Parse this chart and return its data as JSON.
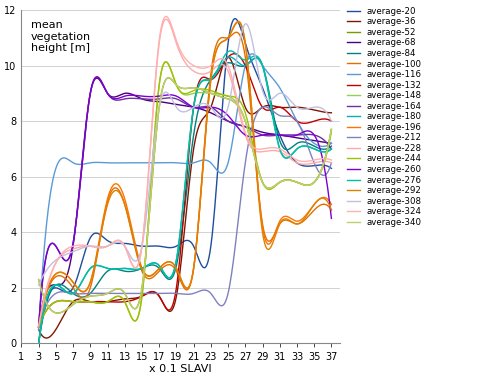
{
  "title_lines": [
    "mean",
    "vegetation",
    "height [m]"
  ],
  "xlabel": "x 0.1 SLAVI",
  "xlim": [
    1,
    38
  ],
  "ylim": [
    0,
    12
  ],
  "xticks": [
    1,
    3,
    5,
    7,
    9,
    11,
    13,
    15,
    17,
    19,
    21,
    23,
    25,
    27,
    29,
    31,
    33,
    35,
    37
  ],
  "yticks": [
    0,
    2,
    4,
    6,
    8,
    10,
    12
  ],
  "series": [
    {
      "label": "average-20",
      "color": "#1f4e9c",
      "x": [
        3,
        5,
        7,
        9,
        11,
        13,
        15,
        17,
        19,
        21,
        23,
        25,
        27,
        29,
        31,
        33,
        35,
        37
      ],
      "y": [
        0.0,
        2.0,
        2.0,
        3.8,
        3.7,
        3.6,
        3.5,
        3.5,
        3.5,
        3.5,
        3.5,
        10.8,
        10.8,
        9.2,
        7.5,
        6.5,
        6.4,
        6.3
      ]
    },
    {
      "label": "average-36",
      "color": "#7f1700",
      "x": [
        3,
        5,
        7,
        9,
        11,
        13,
        15,
        17,
        19,
        21,
        23,
        25,
        27,
        29,
        31,
        33,
        35,
        37
      ],
      "y": [
        0.5,
        0.5,
        1.5,
        1.5,
        1.5,
        1.6,
        1.7,
        1.7,
        1.7,
        7.0,
        8.5,
        10.3,
        8.5,
        8.5,
        8.5,
        8.5,
        8.4,
        8.3
      ]
    },
    {
      "label": "average-52",
      "color": "#7a9a00",
      "x": [
        3,
        5,
        7,
        9,
        11,
        13,
        15,
        17,
        19,
        21,
        23,
        25,
        27,
        29,
        31,
        33,
        35,
        37
      ],
      "y": [
        2.3,
        1.1,
        1.4,
        1.7,
        1.8,
        1.8,
        2.0,
        8.5,
        9.3,
        9.2,
        9.0,
        8.8,
        8.0,
        5.8,
        5.8,
        5.8,
        5.8,
        7.7
      ]
    },
    {
      "label": "average-68",
      "color": "#4b0082",
      "x": [
        3,
        5,
        7,
        9,
        11,
        13,
        15,
        17,
        19,
        21,
        23,
        25,
        27,
        29,
        31,
        33,
        35,
        37
      ],
      "y": [
        0.6,
        2.1,
        3.5,
        9.0,
        9.0,
        9.0,
        8.8,
        8.7,
        8.6,
        8.5,
        8.3,
        8.0,
        7.8,
        7.6,
        7.5,
        7.4,
        7.3,
        7.2
      ]
    },
    {
      "label": "average-84",
      "color": "#008080",
      "x": [
        3,
        5,
        7,
        9,
        11,
        13,
        15,
        17,
        19,
        21,
        23,
        25,
        27,
        29,
        31,
        33,
        35,
        37
      ],
      "y": [
        0.0,
        2.1,
        1.8,
        1.8,
        2.6,
        2.6,
        2.7,
        2.7,
        2.8,
        7.5,
        9.5,
        10.1,
        10.0,
        10.0,
        7.3,
        7.2,
        7.1,
        7.1
      ]
    },
    {
      "label": "average-100",
      "color": "#e07000",
      "x": [
        3,
        5,
        7,
        9,
        11,
        13,
        15,
        17,
        19,
        21,
        23,
        25,
        27,
        29,
        31,
        33,
        35,
        37
      ],
      "y": [
        0.6,
        2.4,
        2.0,
        2.0,
        5.1,
        5.0,
        2.6,
        2.6,
        2.6,
        2.7,
        9.7,
        11.0,
        10.3,
        4.3,
        4.3,
        4.3,
        4.8,
        4.8
      ]
    },
    {
      "label": "average-116",
      "color": "#5b9bd5",
      "x": [
        3,
        5,
        7,
        9,
        11,
        13,
        15,
        17,
        19,
        21,
        23,
        25,
        27,
        29,
        31,
        33,
        35,
        37
      ],
      "y": [
        0.5,
        6.3,
        6.5,
        6.5,
        6.5,
        6.5,
        6.5,
        6.5,
        6.5,
        6.5,
        6.5,
        6.5,
        10.0,
        10.0,
        9.2,
        8.0,
        7.2,
        7.2
      ]
    },
    {
      "label": "average-132",
      "color": "#c00000",
      "x": [
        3,
        5,
        7,
        9,
        11,
        13,
        15,
        17,
        19,
        21,
        23,
        25,
        27,
        29,
        31,
        33,
        35,
        37
      ],
      "y": [
        0.6,
        1.5,
        1.5,
        1.5,
        1.5,
        1.5,
        1.7,
        1.7,
        2.0,
        8.5,
        9.5,
        10.3,
        10.0,
        8.5,
        8.5,
        8.0,
        8.0,
        8.0
      ]
    },
    {
      "label": "average-148",
      "color": "#92d050",
      "x": [
        3,
        5,
        7,
        9,
        11,
        13,
        15,
        17,
        19,
        21,
        23,
        25,
        27,
        29,
        31,
        33,
        35,
        37
      ],
      "y": [
        0.6,
        1.5,
        1.5,
        1.5,
        1.5,
        1.5,
        1.7,
        9.3,
        9.3,
        9.0,
        9.0,
        8.9,
        8.0,
        5.8,
        5.8,
        5.8,
        5.8,
        7.6
      ]
    },
    {
      "label": "average-164",
      "color": "#7030a0",
      "x": [
        3,
        5,
        7,
        9,
        11,
        13,
        15,
        17,
        19,
        21,
        23,
        25,
        27,
        29,
        31,
        33,
        35,
        37
      ],
      "y": [
        0.6,
        3.5,
        3.6,
        9.0,
        9.0,
        8.8,
        8.8,
        8.8,
        8.8,
        8.5,
        8.5,
        8.0,
        7.8,
        7.5,
        7.5,
        7.5,
        7.5,
        7.0
      ]
    },
    {
      "label": "average-180",
      "color": "#00b0c0",
      "x": [
        3,
        5,
        7,
        9,
        11,
        13,
        15,
        17,
        19,
        21,
        23,
        25,
        27,
        29,
        31,
        33,
        35,
        37
      ],
      "y": [
        0.0,
        2.1,
        1.8,
        2.7,
        2.7,
        2.7,
        2.7,
        2.8,
        3.0,
        8.5,
        9.5,
        10.3,
        10.0,
        10.0,
        7.0,
        7.0,
        7.0,
        7.0
      ]
    },
    {
      "label": "average-196",
      "color": "#ff7300",
      "x": [
        3,
        5,
        7,
        9,
        11,
        13,
        15,
        17,
        19,
        21,
        23,
        25,
        27,
        29,
        31,
        33,
        35,
        37
      ],
      "y": [
        0.6,
        2.5,
        2.2,
        2.2,
        5.2,
        5.2,
        2.7,
        2.7,
        2.7,
        2.7,
        9.5,
        11.0,
        10.8,
        4.2,
        4.4,
        4.4,
        5.0,
        5.0
      ]
    },
    {
      "label": "average-212",
      "color": "#8080c0",
      "x": [
        3,
        5,
        7,
        9,
        11,
        13,
        15,
        17,
        19,
        21,
        23,
        25,
        27,
        29,
        31,
        33,
        35,
        37
      ],
      "y": [
        0.6,
        1.8,
        1.8,
        1.8,
        1.8,
        1.8,
        1.8,
        1.8,
        1.8,
        1.8,
        1.8,
        1.8,
        6.5,
        8.5,
        8.2,
        8.0,
        6.5,
        6.5
      ]
    },
    {
      "label": "average-228",
      "color": "#ffaaaa",
      "x": [
        3,
        5,
        7,
        9,
        11,
        13,
        15,
        17,
        19,
        21,
        23,
        25,
        27,
        29,
        31,
        33,
        35,
        37
      ],
      "y": [
        0.6,
        2.9,
        3.4,
        3.5,
        3.5,
        3.5,
        3.5,
        10.8,
        10.8,
        9.8,
        9.8,
        9.8,
        7.5,
        6.9,
        6.9,
        6.5,
        6.5,
        6.5
      ]
    },
    {
      "label": "average-244",
      "color": "#a0c000",
      "x": [
        3,
        5,
        7,
        9,
        11,
        13,
        15,
        17,
        19,
        21,
        23,
        25,
        27,
        29,
        31,
        33,
        35,
        37
      ],
      "y": [
        0.6,
        1.5,
        1.5,
        1.5,
        1.5,
        1.5,
        1.7,
        9.3,
        9.3,
        9.1,
        9.1,
        8.9,
        8.3,
        5.8,
        5.8,
        5.8,
        5.8,
        7.7
      ]
    },
    {
      "label": "average-260",
      "color": "#7b00d0",
      "x": [
        3,
        5,
        7,
        9,
        11,
        13,
        15,
        17,
        19,
        21,
        23,
        25,
        27,
        29,
        31,
        33,
        35,
        37
      ],
      "y": [
        0.6,
        3.5,
        3.6,
        9.0,
        9.0,
        8.9,
        8.9,
        8.9,
        8.9,
        8.5,
        8.5,
        8.2,
        7.5,
        7.5,
        7.5,
        7.5,
        7.5,
        4.5
      ]
    },
    {
      "label": "average-276",
      "color": "#00c0a0",
      "x": [
        3,
        5,
        7,
        9,
        11,
        13,
        15,
        17,
        19,
        21,
        23,
        25,
        27,
        29,
        31,
        33,
        35,
        37
      ],
      "y": [
        0.0,
        2.1,
        1.8,
        2.7,
        2.7,
        2.7,
        2.7,
        2.8,
        3.0,
        8.5,
        9.5,
        10.5,
        10.2,
        10.0,
        7.0,
        7.0,
        7.0,
        7.0
      ]
    },
    {
      "label": "average-292",
      "color": "#e08000",
      "x": [
        3,
        5,
        7,
        9,
        11,
        13,
        15,
        17,
        19,
        21,
        23,
        25,
        27,
        29,
        31,
        33,
        35,
        37
      ],
      "y": [
        0.6,
        2.5,
        2.2,
        2.2,
        5.0,
        5.0,
        2.7,
        2.7,
        2.7,
        2.7,
        9.5,
        11.0,
        10.8,
        4.0,
        4.3,
        4.3,
        5.0,
        4.8
      ]
    },
    {
      "label": "average-308",
      "color": "#c0c0e0",
      "x": [
        3,
        5,
        7,
        9,
        11,
        13,
        15,
        17,
        19,
        21,
        23,
        25,
        27,
        29,
        31,
        33,
        35,
        37
      ],
      "y": [
        2.1,
        3.0,
        3.3,
        3.5,
        3.5,
        3.5,
        3.5,
        8.5,
        8.5,
        8.5,
        8.5,
        8.5,
        11.5,
        9.1,
        9.0,
        8.5,
        8.5,
        8.0
      ]
    },
    {
      "label": "average-324",
      "color": "#ffb0b0",
      "x": [
        3,
        5,
        7,
        9,
        11,
        13,
        15,
        17,
        19,
        21,
        23,
        25,
        27,
        29,
        31,
        33,
        35,
        37
      ],
      "y": [
        0.6,
        2.9,
        3.5,
        3.5,
        3.5,
        3.5,
        3.5,
        10.9,
        10.9,
        10.0,
        10.0,
        10.0,
        7.6,
        7.0,
        7.0,
        6.6,
        6.6,
        6.6
      ]
    },
    {
      "label": "average-340",
      "color": "#c0d070",
      "x": [
        3,
        5,
        7,
        9,
        11,
        13,
        15,
        17,
        19,
        21,
        23,
        25,
        27,
        29,
        31,
        33,
        35,
        37
      ],
      "y": [
        2.3,
        1.1,
        1.4,
        1.7,
        1.8,
        1.8,
        2.0,
        8.5,
        9.3,
        9.2,
        9.0,
        8.8,
        8.0,
        5.8,
        5.8,
        5.8,
        5.8,
        7.7
      ]
    }
  ]
}
